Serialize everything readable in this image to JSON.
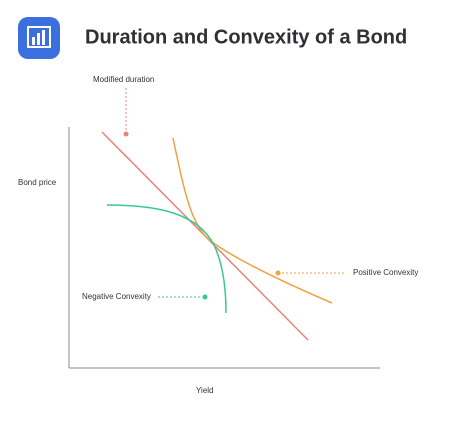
{
  "header": {
    "title": "Duration and Convexity of a Bond"
  },
  "axes": {
    "y_label": "Bond price",
    "x_label": "Yield"
  },
  "annotations": {
    "modified_duration": "Modified duration",
    "positive_convexity": "Positive Convexity",
    "negative_convexity": "Negative Convexity"
  }
}
